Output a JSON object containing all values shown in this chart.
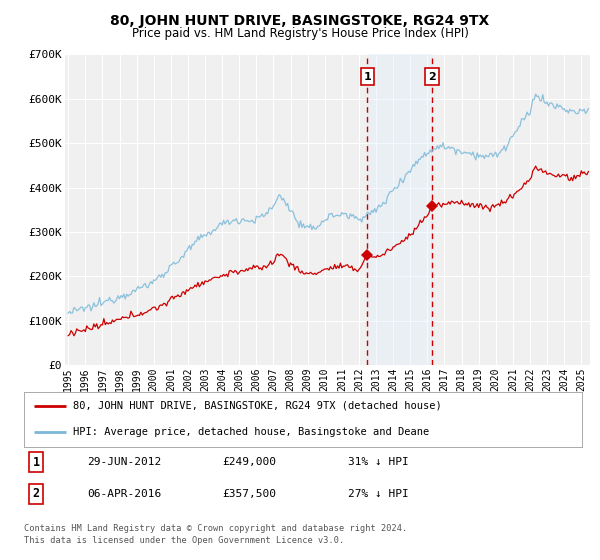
{
  "title": "80, JOHN HUNT DRIVE, BASINGSTOKE, RG24 9TX",
  "subtitle": "Price paid vs. HM Land Registry's House Price Index (HPI)",
  "ylim": [
    0,
    700000
  ],
  "yticks": [
    0,
    100000,
    200000,
    300000,
    400000,
    500000,
    600000,
    700000
  ],
  "ytick_labels": [
    "£0",
    "£100K",
    "£200K",
    "£300K",
    "£400K",
    "£500K",
    "£600K",
    "£700K"
  ],
  "hpi_color": "#7ab8d9",
  "price_color": "#cc0000",
  "bg_color": "#ffffff",
  "plot_bg_color": "#f0f0f0",
  "grid_color": "#ffffff",
  "highlight_color": "#ddeeff",
  "legend_label_price": "80, JOHN HUNT DRIVE, BASINGSTOKE, RG24 9TX (detached house)",
  "legend_label_hpi": "HPI: Average price, detached house, Basingstoke and Deane",
  "sale1_date": "29-JUN-2012",
  "sale1_price": "£249,000",
  "sale1_hpi_pct": "31% ↓ HPI",
  "sale1_year": 2012.5,
  "sale1_value": 249000,
  "sale2_date": "06-APR-2016",
  "sale2_price": "£357,500",
  "sale2_hpi_pct": "27% ↓ HPI",
  "sale2_year": 2016.27,
  "sale2_value": 357500,
  "footer1": "Contains HM Land Registry data © Crown copyright and database right 2024.",
  "footer2": "This data is licensed under the Open Government Licence v3.0.",
  "xmin": 1994.8,
  "xmax": 2025.5
}
